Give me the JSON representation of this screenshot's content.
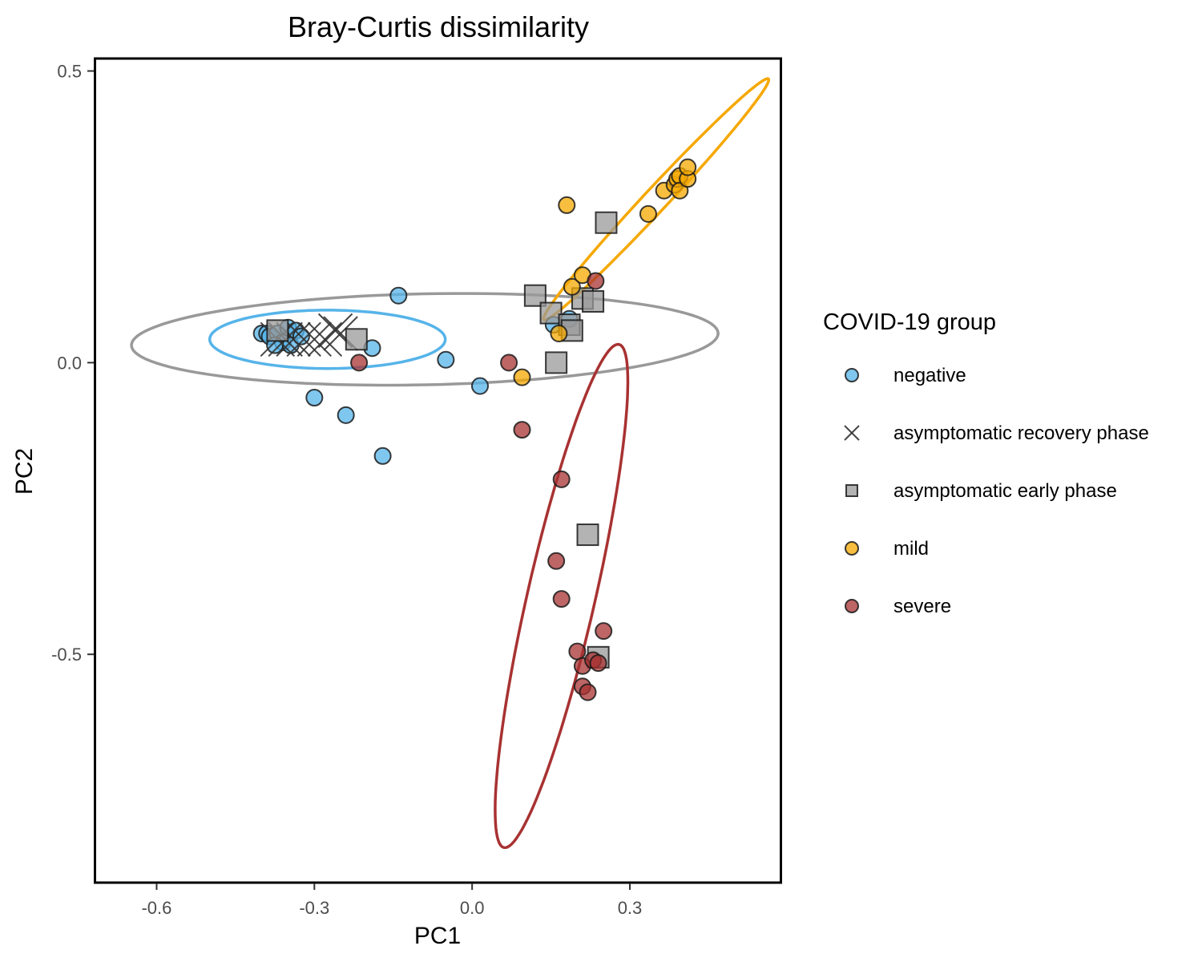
{
  "chart_data": {
    "type": "scatter",
    "title": "Bray-Curtis dissimilarity",
    "xlabel": "PC1",
    "ylabel": "PC2",
    "xlim": [
      -0.715,
      0.585
    ],
    "ylim": [
      -0.89,
      0.52
    ],
    "xticks": [
      -0.6,
      -0.3,
      0.0,
      0.3
    ],
    "xtick_labels": [
      "-0.6",
      "-0.3",
      "0.0",
      "0.3"
    ],
    "yticks": [
      0.5,
      0.0,
      -0.5
    ],
    "ytick_labels": [
      "0.5",
      "0.0",
      "-0.5"
    ],
    "grid": false,
    "legend": {
      "title": "COVID-19 group",
      "placement": "right",
      "entries": [
        "negative",
        "asymptomatic recovery phase",
        "asymptomatic early phase",
        "mild",
        "severe"
      ]
    },
    "series": [
      {
        "name": "negative",
        "marker": "circle",
        "color": "#56B4E9",
        "points": [
          [
            -0.4,
            0.05
          ],
          [
            -0.39,
            0.05
          ],
          [
            -0.385,
            0.045
          ],
          [
            -0.37,
            0.05
          ],
          [
            -0.36,
            0.035
          ],
          [
            -0.375,
            0.03
          ],
          [
            -0.35,
            0.06
          ],
          [
            -0.345,
            0.03
          ],
          [
            -0.335,
            0.055
          ],
          [
            -0.325,
            0.045
          ],
          [
            -0.19,
            0.025
          ],
          [
            -0.14,
            0.115
          ],
          [
            -0.05,
            0.005
          ],
          [
            0.015,
            -0.04
          ],
          [
            -0.3,
            -0.06
          ],
          [
            -0.24,
            -0.09
          ],
          [
            -0.17,
            -0.16
          ],
          [
            0.155,
            0.065
          ],
          [
            0.185,
            0.075
          ]
        ]
      },
      {
        "name": "asymptomatic recovery phase",
        "marker": "cross",
        "color": "#333333",
        "points": [
          [
            -0.37,
            0.04
          ],
          [
            -0.355,
            0.04
          ],
          [
            -0.34,
            0.04
          ],
          [
            -0.32,
            0.04
          ],
          [
            -0.3,
            0.04
          ],
          [
            -0.28,
            0.04
          ],
          [
            -0.26,
            0.055
          ],
          [
            -0.25,
            0.05
          ]
        ]
      },
      {
        "name": "asymptomatic early phase",
        "marker": "square",
        "color": "#999999",
        "points": [
          [
            -0.37,
            0.055
          ],
          [
            -0.22,
            0.04
          ],
          [
            0.12,
            0.115
          ],
          [
            0.15,
            0.085
          ],
          [
            0.185,
            0.065
          ],
          [
            0.19,
            0.055
          ],
          [
            0.21,
            0.11
          ],
          [
            0.23,
            0.105
          ],
          [
            0.255,
            0.24
          ],
          [
            0.16,
            0.0
          ],
          [
            0.22,
            -0.295
          ],
          [
            0.24,
            -0.505
          ]
        ]
      },
      {
        "name": "mild",
        "marker": "circle",
        "color": "#F5A800",
        "points": [
          [
            0.18,
            0.27
          ],
          [
            0.335,
            0.255
          ],
          [
            0.365,
            0.295
          ],
          [
            0.385,
            0.305
          ],
          [
            0.39,
            0.315
          ],
          [
            0.395,
            0.32
          ],
          [
            0.395,
            0.295
          ],
          [
            0.41,
            0.315
          ],
          [
            0.41,
            0.335
          ],
          [
            0.19,
            0.13
          ],
          [
            0.21,
            0.15
          ],
          [
            0.165,
            0.05
          ],
          [
            0.095,
            -0.025
          ]
        ]
      },
      {
        "name": "severe",
        "marker": "circle",
        "color": "#A83232",
        "points": [
          [
            -0.215,
            0.0
          ],
          [
            0.07,
            0.0
          ],
          [
            0.235,
            0.14
          ],
          [
            0.095,
            -0.115
          ],
          [
            0.17,
            -0.2
          ],
          [
            0.16,
            -0.34
          ],
          [
            0.17,
            -0.405
          ],
          [
            0.25,
            -0.46
          ],
          [
            0.2,
            -0.495
          ],
          [
            0.21,
            -0.52
          ],
          [
            0.23,
            -0.51
          ],
          [
            0.24,
            -0.515
          ],
          [
            0.21,
            -0.555
          ],
          [
            0.22,
            -0.565
          ]
        ]
      }
    ],
    "ellipses": [
      {
        "group": "asymptomatic early phase",
        "color": "#999999",
        "cx": -0.09,
        "cy": 0.04,
        "rx": 0.558,
        "ry": 0.078,
        "angle_deg": 1.06
      },
      {
        "group": "negative",
        "color": "#56B4E9",
        "cx": -0.275,
        "cy": 0.04,
        "rx": 0.224,
        "ry": 0.05,
        "angle_deg": 0
      },
      {
        "group": "mild",
        "color": "#F5A800",
        "cx": 0.35,
        "cy": 0.28,
        "rx": 0.297,
        "ry": 0.021,
        "angle_deg": 44
      },
      {
        "group": "severe",
        "color": "#A83232",
        "cx": 0.17,
        "cy": -0.4,
        "rx": 0.445,
        "ry": 0.064,
        "angle_deg": 75.7
      }
    ]
  }
}
